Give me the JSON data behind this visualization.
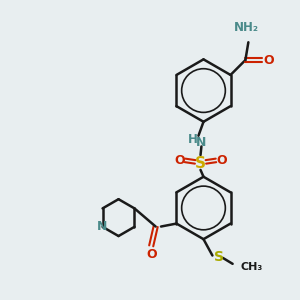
{
  "background_color": "#e8eef0",
  "bond_color": "#1a1a1a",
  "colors": {
    "N": "#4a8a8a",
    "O": "#cc2200",
    "S": "#ccaa00",
    "S_thio": "#aaaa00",
    "C": "#1a1a1a",
    "H": "#4a8a8a"
  },
  "figsize": [
    3.0,
    3.0
  ],
  "dpi": 100
}
